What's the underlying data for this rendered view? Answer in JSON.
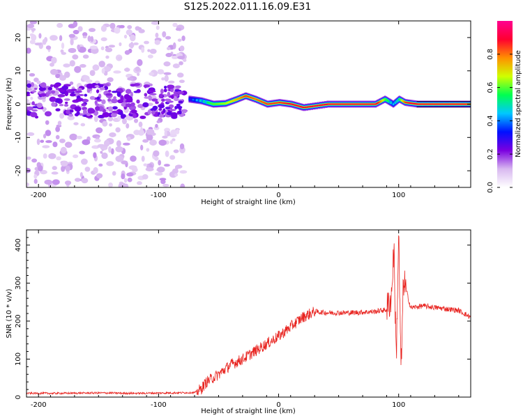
{
  "title": "S125.2022.011.16.09.E31",
  "chart_data": [
    {
      "type": "heatmap",
      "xlabel": "Height of straight line (km)",
      "ylabel": "Frequency (Hz)",
      "xlim": [
        -210,
        160
      ],
      "ylim": [
        -25,
        25
      ],
      "x_ticks": [
        -200,
        -100,
        0,
        100
      ],
      "y_ticks": [
        -20,
        -10,
        0,
        10,
        20
      ],
      "colorbar": {
        "label": "Normalized spectral amplitude",
        "range": [
          0,
          1
        ],
        "ticks": [
          0.0,
          0.2,
          0.4,
          0.6,
          0.8
        ],
        "colors": [
          "#ffffff",
          "#d8b8f0",
          "#7b00e0",
          "#0010ff",
          "#00c8ff",
          "#00ff50",
          "#d0ff00",
          "#ff9000",
          "#ff0030",
          "#ff0090"
        ]
      },
      "ridge": {
        "x": [
          -75,
          -65,
          -55,
          -45,
          -35,
          -28,
          -20,
          -10,
          0,
          10,
          20,
          40,
          60,
          80,
          88,
          95,
          100,
          105,
          115,
          160
        ],
        "frequency_hz": [
          1.5,
          1.0,
          0.0,
          0.2,
          1.5,
          2.5,
          1.5,
          0.0,
          0.5,
          0.0,
          -1.0,
          0.0,
          0.0,
          0.0,
          1.5,
          0.0,
          1.5,
          0.5,
          0.0,
          0.0
        ],
        "amplitude": [
          0.3,
          0.45,
          0.55,
          0.6,
          0.7,
          0.8,
          0.75,
          0.8,
          0.8,
          0.85,
          0.9,
          0.95,
          0.95,
          0.95,
          0.55,
          0.4,
          0.5,
          0.8,
          0.95,
          0.95
        ]
      },
      "noise_region": {
        "x_range": [
          -210,
          -78
        ],
        "frequency_range": [
          -25,
          25
        ],
        "strong_band_hz": [
          -4,
          6
        ]
      }
    },
    {
      "type": "line",
      "xlabel": "Height of straight line (km)",
      "ylabel": "SNR (10 * v/v)",
      "xlim": [
        -210,
        160
      ],
      "ylim": [
        0,
        440
      ],
      "x_ticks": [
        -200,
        -100,
        0,
        100
      ],
      "y_ticks": [
        0,
        100,
        200,
        300,
        400
      ],
      "series": [
        {
          "color": "#e8231f",
          "x": [
            -210,
            -180,
            -150,
            -120,
            -90,
            -70,
            -65,
            -60,
            -50,
            -40,
            -30,
            -20,
            -10,
            0,
            10,
            20,
            30,
            40,
            60,
            80,
            90,
            94,
            96,
            98,
            100,
            102,
            104,
            110,
            120,
            140,
            150,
            160
          ],
          "values": [
            10,
            10,
            11,
            10,
            11,
            12,
            20,
            40,
            60,
            85,
            100,
            120,
            140,
            160,
            185,
            210,
            225,
            222,
            222,
            225,
            230,
            265,
            400,
            100,
            430,
            60,
            310,
            235,
            240,
            232,
            228,
            210
          ]
        }
      ]
    }
  ]
}
